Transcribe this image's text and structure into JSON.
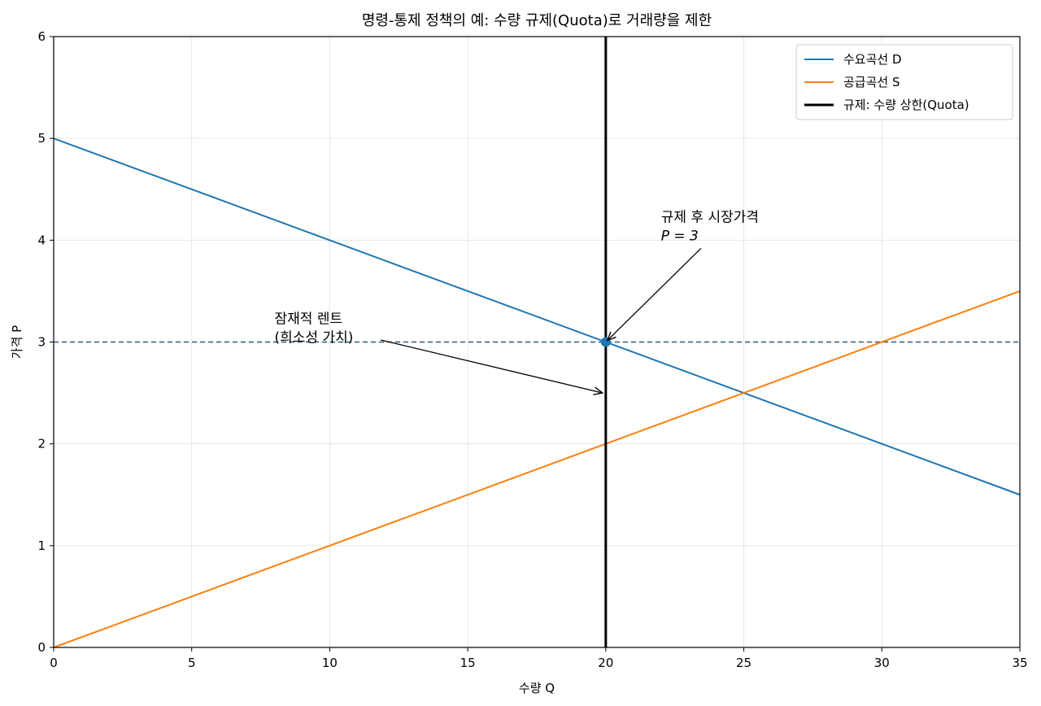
{
  "chart_data": {
    "type": "line",
    "title": "명령-통제 정책의 예: 수량 규제(Quota)로 거래량을 제한",
    "xlabel": "수량 Q",
    "ylabel": "가격 P",
    "xlim": [
      0,
      35
    ],
    "ylim": [
      0,
      6
    ],
    "xticks": [
      0,
      5,
      10,
      15,
      20,
      25,
      30,
      35
    ],
    "yticks": [
      0,
      1,
      2,
      3,
      4,
      5,
      6
    ],
    "grid": true,
    "legend_position": "top-right",
    "series": [
      {
        "name": "수요곡선 D",
        "color": "#1f77b4",
        "x": [
          0,
          35
        ],
        "y": [
          5,
          1.5
        ]
      },
      {
        "name": "공급곡선 S",
        "color": "#ff7f0e",
        "x": [
          0,
          35
        ],
        "y": [
          0,
          3.5
        ]
      }
    ],
    "quota": {
      "name": "규제: 수량 상한(Quota)",
      "x": 20,
      "color": "#000000"
    },
    "price_line": {
      "y": 3,
      "color": "#1f5f8b"
    },
    "market_point": {
      "x": 20,
      "y": 3,
      "color": "#1f77b4"
    },
    "annotations": [
      {
        "lines": [
          "규제 후 시장가격",
          "P = 3"
        ],
        "text_x": 22,
        "text_y": 4.0,
        "target_x": 20,
        "target_y": 3
      },
      {
        "lines": [
          "잠재적 렌트",
          "(희소성 가치)"
        ],
        "text_x": 8,
        "text_y": 3.0,
        "target_x": 20,
        "target_y": 2.5
      }
    ]
  }
}
